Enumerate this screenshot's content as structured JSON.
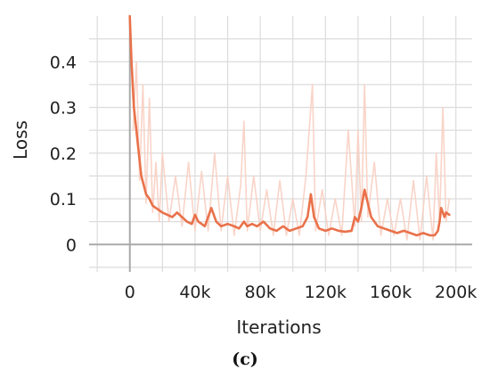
{
  "chart_data": {
    "type": "line",
    "title": "",
    "xlabel": "Iterations",
    "ylabel": "Loss",
    "caption": "(c)",
    "xlim": [
      -25000,
      210000
    ],
    "ylim": [
      -0.06,
      0.5
    ],
    "grid": true,
    "x_ticks": [
      {
        "value": 0,
        "label": "0"
      },
      {
        "value": 40000,
        "label": "40k"
      },
      {
        "value": 80000,
        "label": "80k"
      },
      {
        "value": 120000,
        "label": "120k"
      },
      {
        "value": 160000,
        "label": "160k"
      },
      {
        "value": 200000,
        "label": "200k"
      }
    ],
    "y_ticks": [
      {
        "value": 0,
        "label": "0"
      },
      {
        "value": 0.1,
        "label": "0.1"
      },
      {
        "value": 0.2,
        "label": "0.2"
      },
      {
        "value": 0.3,
        "label": "0.3"
      },
      {
        "value": 0.4,
        "label": "0.4"
      }
    ],
    "series": [
      {
        "color": "#e9714a",
        "style": "smoothed",
        "x": [
          0,
          1000,
          2500,
          4000,
          5500,
          7000,
          8500,
          10000,
          12000,
          14000,
          16000,
          18000,
          20000,
          23000,
          26000,
          29000,
          32000,
          35000,
          38000,
          40000,
          42000,
          44000,
          46000,
          48000,
          50000,
          53000,
          56000,
          60000,
          64000,
          67000,
          70000,
          72000,
          75000,
          78000,
          82000,
          86000,
          90000,
          94000,
          98000,
          102000,
          106000,
          109000,
          111000,
          113000,
          116000,
          120000,
          124000,
          128000,
          132000,
          136000,
          138000,
          140000,
          142000,
          144000,
          146000,
          148000,
          152000,
          156000,
          160000,
          164000,
          168000,
          172000,
          176000,
          180000,
          184000,
          187000,
          189000,
          190000,
          191000,
          192000,
          193000,
          194000,
          196000
        ],
        "y": [
          0.5,
          0.4,
          0.3,
          0.25,
          0.2,
          0.15,
          0.13,
          0.11,
          0.1,
          0.085,
          0.08,
          0.075,
          0.07,
          0.065,
          0.06,
          0.07,
          0.06,
          0.05,
          0.045,
          0.065,
          0.05,
          0.045,
          0.04,
          0.06,
          0.08,
          0.05,
          0.04,
          0.045,
          0.04,
          0.035,
          0.05,
          0.04,
          0.045,
          0.04,
          0.05,
          0.035,
          0.03,
          0.04,
          0.03,
          0.035,
          0.04,
          0.06,
          0.11,
          0.06,
          0.035,
          0.03,
          0.035,
          0.03,
          0.028,
          0.03,
          0.06,
          0.05,
          0.08,
          0.12,
          0.09,
          0.06,
          0.04,
          0.035,
          0.03,
          0.025,
          0.03,
          0.025,
          0.02,
          0.025,
          0.02,
          0.02,
          0.03,
          0.05,
          0.08,
          0.07,
          0.06,
          0.07,
          0.065
        ]
      },
      {
        "color": "#f8cfc2",
        "style": "raw",
        "x": [
          2000,
          4000,
          6000,
          8000,
          10000,
          12000,
          14000,
          16000,
          18000,
          20000,
          24000,
          28000,
          32000,
          36000,
          40000,
          44000,
          48000,
          52000,
          56000,
          60000,
          64000,
          68000,
          70000,
          72000,
          76000,
          80000,
          84000,
          88000,
          92000,
          96000,
          100000,
          104000,
          108000,
          112000,
          114000,
          118000,
          122000,
          126000,
          130000,
          134000,
          138000,
          140000,
          142000,
          144000,
          146000,
          150000,
          154000,
          158000,
          162000,
          166000,
          170000,
          174000,
          178000,
          182000,
          186000,
          188000,
          190000,
          192000,
          194000,
          196000
        ],
        "y": [
          0.25,
          0.4,
          0.14,
          0.35,
          0.09,
          0.32,
          0.07,
          0.18,
          0.05,
          0.2,
          0.05,
          0.15,
          0.04,
          0.18,
          0.03,
          0.16,
          0.03,
          0.2,
          0.03,
          0.15,
          0.02,
          0.13,
          0.27,
          0.03,
          0.15,
          0.03,
          0.12,
          0.02,
          0.14,
          0.02,
          0.1,
          0.02,
          0.15,
          0.35,
          0.03,
          0.12,
          0.02,
          0.1,
          0.02,
          0.25,
          0.04,
          0.25,
          0.05,
          0.35,
          0.06,
          0.18,
          0.02,
          0.1,
          0.02,
          0.1,
          0.01,
          0.14,
          0.01,
          0.15,
          0.01,
          0.2,
          0.05,
          0.3,
          0.05,
          0.1
        ]
      }
    ]
  }
}
